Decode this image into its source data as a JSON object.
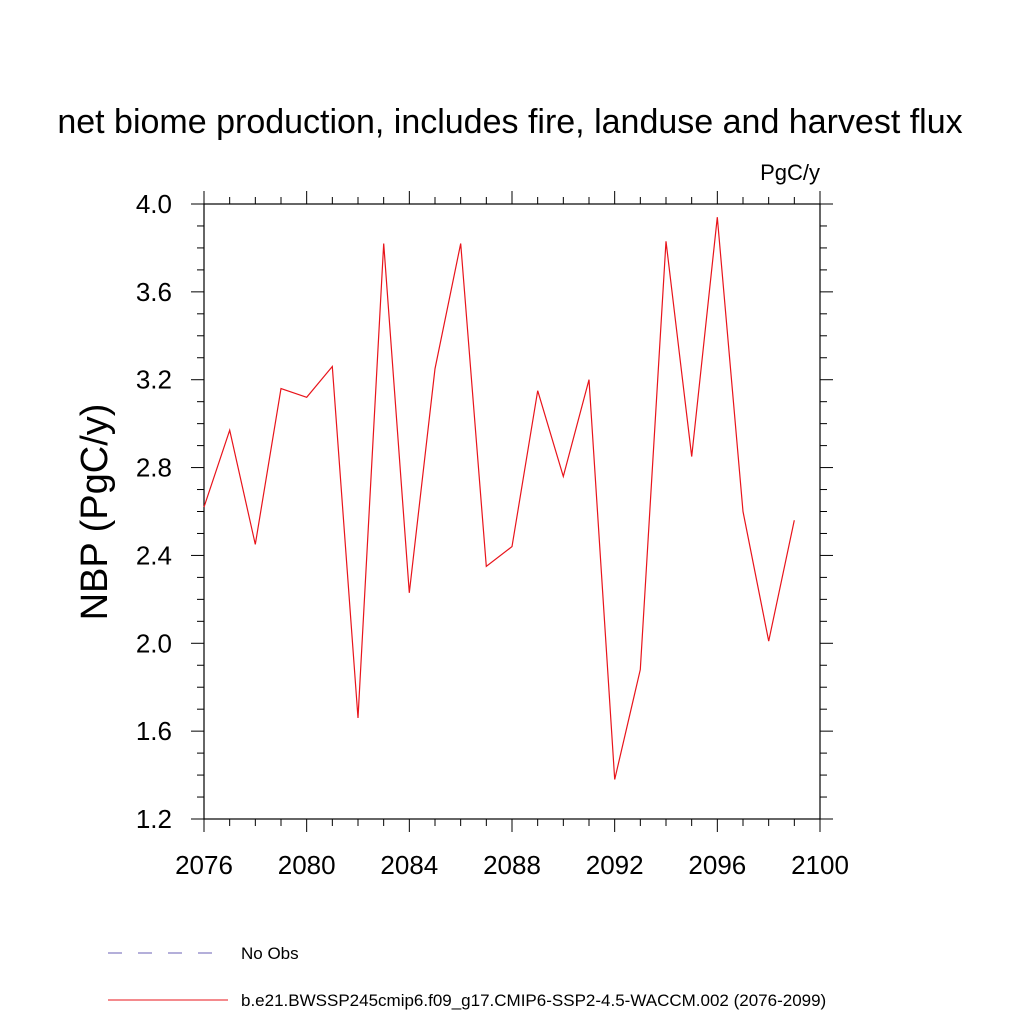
{
  "chart_data": {
    "type": "line",
    "title": "net biome production, includes fire, landuse and harvest flux",
    "units": "PgC/y",
    "ylabel": "NBP  (PgC/y)",
    "xlabel": "",
    "xlim": [
      2076,
      2100
    ],
    "ylim": [
      1.2,
      4.0
    ],
    "x_ticks": [
      "2076",
      "2080",
      "2084",
      "2088",
      "2092",
      "2096",
      "2100"
    ],
    "y_ticks": [
      "1.2",
      "1.6",
      "2.0",
      "2.4",
      "2.8",
      "3.2",
      "3.6",
      "4.0"
    ],
    "x_tick_values": [
      2076,
      2080,
      2084,
      2088,
      2092,
      2096,
      2100
    ],
    "y_tick_values": [
      1.2,
      1.6,
      2.0,
      2.4,
      2.8,
      3.2,
      3.6,
      4.0
    ],
    "grid": false,
    "series": [
      {
        "name": "b.e21.BWSSP245cmip6.f09_g17.CMIP6-SSP2-4.5-WACCM.002 (2076-2099)",
        "color": "#e8141b",
        "x": [
          2076,
          2077,
          2078,
          2079,
          2080,
          2081,
          2082,
          2083,
          2084,
          2085,
          2086,
          2087,
          2088,
          2089,
          2090,
          2091,
          2092,
          2093,
          2094,
          2095,
          2096,
          2097,
          2098,
          2099
        ],
        "y": [
          2.62,
          2.97,
          2.45,
          3.16,
          3.12,
          3.26,
          1.66,
          3.82,
          2.23,
          3.25,
          3.82,
          2.35,
          2.44,
          3.15,
          2.76,
          3.2,
          1.38,
          1.88,
          3.83,
          2.85,
          3.94,
          2.6,
          2.01,
          2.56
        ]
      }
    ],
    "legend": {
      "placement": "bottom",
      "entries": [
        {
          "label": "No Obs",
          "style": "dashed",
          "color": "#6a5fb4"
        },
        {
          "label": "b.e21.BWSSP245cmip6.f09_g17.CMIP6-SSP2-4.5-WACCM.002 (2076-2099)",
          "style": "solid",
          "color": "#e8141b"
        }
      ]
    }
  }
}
